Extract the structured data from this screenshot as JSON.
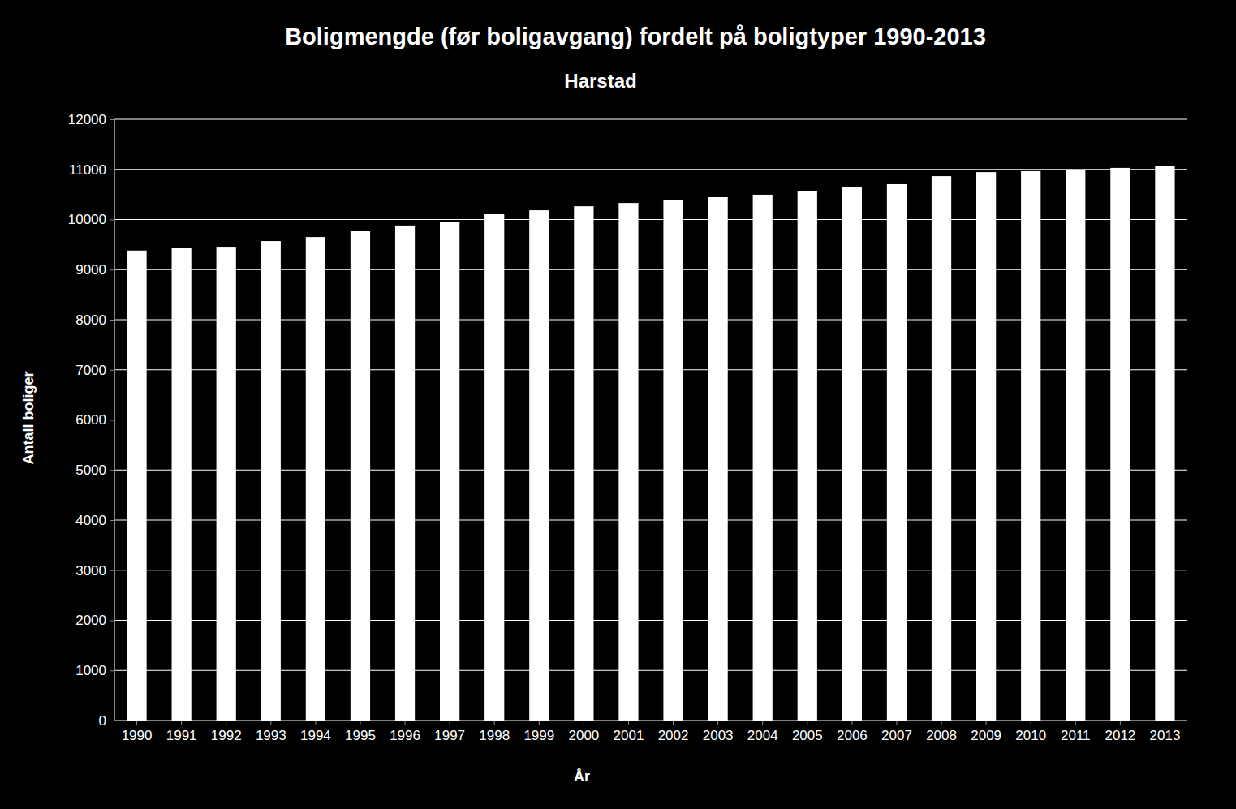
{
  "chart_data": {
    "type": "bar",
    "title": "Boligmengde (før boligavgang) fordelt på boligtyper 1990-2013",
    "subtitle": "Harstad",
    "x_label": "År",
    "y_label": "Antall boliger",
    "categories": [
      "1990",
      "1991",
      "1992",
      "1993",
      "1994",
      "1995",
      "1996",
      "1997",
      "1998",
      "1999",
      "2000",
      "2001",
      "2002",
      "2003",
      "2004",
      "2005",
      "2006",
      "2007",
      "2008",
      "2009",
      "2010",
      "2011",
      "2012",
      "2013"
    ],
    "values": [
      9380,
      9425,
      9440,
      9570,
      9650,
      9765,
      9880,
      9945,
      10105,
      10185,
      10265,
      10330,
      10395,
      10445,
      10495,
      10560,
      10640,
      10705,
      10865,
      10945,
      10965,
      10995,
      11030,
      11075
    ],
    "color": "#ffffff",
    "ylim": [
      0,
      12000
    ],
    "yticks": [
      0,
      1000,
      2000,
      3000,
      4000,
      5000,
      6000,
      7000,
      8000,
      9000,
      10000,
      11000,
      12000
    ],
    "grid": true
  }
}
